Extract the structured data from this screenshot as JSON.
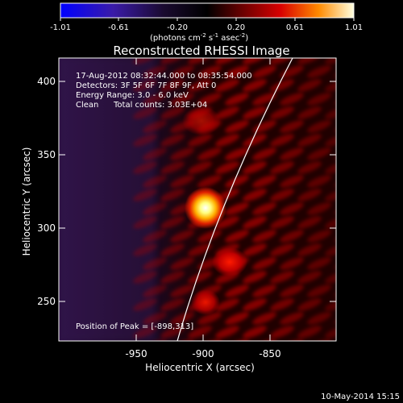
{
  "colorbar": {
    "ticks": [
      "-1.01",
      "-0.61",
      "-0.20",
      "0.20",
      "0.61",
      "1.01"
    ],
    "units_main": "(photons cm",
    "units_sup1": "-2",
    "units_mid": " s",
    "units_sup2": "-1",
    "units_end": " asec",
    "units_sup3": "-2",
    "units_close": ")"
  },
  "title": "Reconstructed RHESSI Image",
  "info": {
    "time_range": "17-Aug-2012 08:32:44.000 to 08:35:54.000",
    "detectors": "Detectors: 3F 5F 6F 7F 8F 9F, Att 0",
    "energy": "Energy Range: 3.0 - 6.0 keV",
    "clean_label": "Clean",
    "total_counts": "Total counts: 3.03E+04",
    "peak": "Position of Peak = [-898,313]"
  },
  "axes": {
    "xlabel": "Heliocentric X (arcsec)",
    "ylabel": "Heliocentric Y (arcsec)",
    "xticks": [
      "-950",
      "-900",
      "-850"
    ],
    "yticks": [
      "250",
      "300",
      "350",
      "400"
    ]
  },
  "footer": {
    "date": "10-May-2014 15:15"
  },
  "colors": {
    "background": "#000000",
    "limb_line": "#ffffff"
  }
}
